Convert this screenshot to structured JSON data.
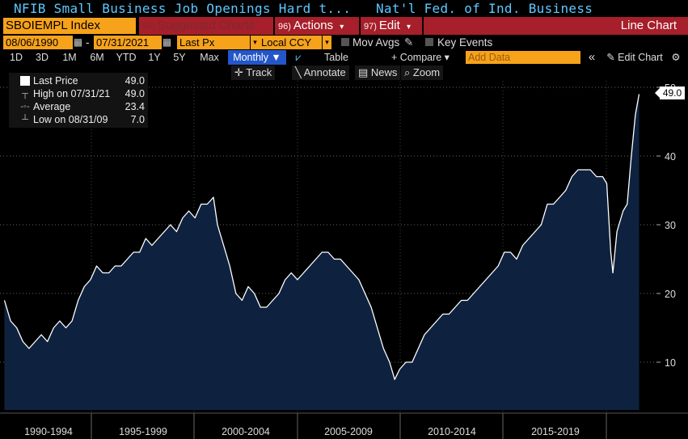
{
  "window": {
    "title_left": "NFIB Small Business Job Openings Hard t...",
    "title_right": "Nat'l Fed. of Ind. Business"
  },
  "toolbar": {
    "ticker": "SBOIEMPL Index",
    "suggested_num": "94)",
    "suggested_label": "Suggested Charts",
    "actions_num": "96)",
    "actions_label": "Actions",
    "edit_num": "97)",
    "edit_label": "Edit",
    "chart_type": "Line Chart",
    "dropdown_arrow": "▾"
  },
  "fields": {
    "start_date": "08/06/1990",
    "dash": "-",
    "end_date": "07/31/2021",
    "price_type": "Last Px",
    "currency": "Local CCY",
    "mov_avgs": "Mov Avgs",
    "key_events": "Key Events"
  },
  "periods": {
    "items": [
      "1D",
      "3D",
      "1M",
      "6M",
      "YTD",
      "1Y",
      "5Y",
      "Max"
    ],
    "frequency": "Monthly ▼",
    "table": "Table",
    "compare": "+ Compare ▾",
    "add_data_placeholder": "Add Data",
    "collapse": "«",
    "edit_chart": "✎ Edit Chart",
    "settings": "⚙"
  },
  "tools": {
    "track": "✛ Track",
    "annotate": "╲ Annotate",
    "news": "News",
    "zoom": "⌕ Zoom"
  },
  "legend": {
    "last_price_label": "Last Price",
    "last_price_value": "49.0",
    "high_label": "High on 07/31/21",
    "high_value": "49.0",
    "average_label": "Average",
    "average_value": "23.4",
    "low_label": "Low on 08/31/09",
    "low_value": "7.0"
  },
  "last_value_badge": "49.0",
  "colors": {
    "ticker_bg": "#f7a21b",
    "menu_red": "#a61f2a",
    "title_cyan": "#5ec8ff",
    "area_fill": "#0e2240",
    "line": "#ffffff",
    "selected_blue": "#2456c9"
  },
  "chart_data": {
    "type": "area",
    "title": "",
    "series_name": "Last Price",
    "x_tick_labels": [
      "1990-1994",
      "1995-1999",
      "2000-2004",
      "2005-2009",
      "2010-2014",
      "2015-2019"
    ],
    "y_ticks": [
      10,
      20,
      30,
      40,
      50
    ],
    "ylim": [
      3,
      52
    ],
    "xlim": [
      1990.58,
      2022.3
    ],
    "grid": true,
    "points": [
      [
        1990.6,
        19
      ],
      [
        1990.9,
        16
      ],
      [
        1991.2,
        15
      ],
      [
        1991.5,
        13
      ],
      [
        1991.8,
        12
      ],
      [
        1992.1,
        13
      ],
      [
        1992.4,
        14
      ],
      [
        1992.7,
        13
      ],
      [
        1993.0,
        15
      ],
      [
        1993.3,
        16
      ],
      [
        1993.6,
        15
      ],
      [
        1993.9,
        16
      ],
      [
        1994.2,
        19
      ],
      [
        1994.5,
        21
      ],
      [
        1994.8,
        22
      ],
      [
        1995.1,
        24
      ],
      [
        1995.4,
        23
      ],
      [
        1995.7,
        23
      ],
      [
        1996.0,
        24
      ],
      [
        1996.3,
        24
      ],
      [
        1996.6,
        25
      ],
      [
        1996.9,
        26
      ],
      [
        1997.2,
        26
      ],
      [
        1997.5,
        28
      ],
      [
        1997.8,
        27
      ],
      [
        1998.1,
        28
      ],
      [
        1998.4,
        29
      ],
      [
        1998.7,
        30
      ],
      [
        1999.0,
        29
      ],
      [
        1999.3,
        31
      ],
      [
        1999.6,
        32
      ],
      [
        1999.9,
        31
      ],
      [
        2000.2,
        33
      ],
      [
        2000.5,
        33
      ],
      [
        2000.8,
        34
      ],
      [
        2001.0,
        30
      ],
      [
        2001.3,
        27
      ],
      [
        2001.6,
        24
      ],
      [
        2001.9,
        20
      ],
      [
        2002.2,
        19
      ],
      [
        2002.5,
        21
      ],
      [
        2002.8,
        20
      ],
      [
        2003.1,
        18
      ],
      [
        2003.4,
        18
      ],
      [
        2003.7,
        19
      ],
      [
        2004.0,
        20
      ],
      [
        2004.3,
        22
      ],
      [
        2004.6,
        23
      ],
      [
        2004.9,
        22
      ],
      [
        2005.2,
        23
      ],
      [
        2005.5,
        24
      ],
      [
        2005.8,
        25
      ],
      [
        2006.1,
        26
      ],
      [
        2006.4,
        26
      ],
      [
        2006.7,
        25
      ],
      [
        2007.0,
        25
      ],
      [
        2007.3,
        24
      ],
      [
        2007.6,
        23
      ],
      [
        2007.9,
        22
      ],
      [
        2008.2,
        20
      ],
      [
        2008.5,
        18
      ],
      [
        2008.8,
        15
      ],
      [
        2009.1,
        12
      ],
      [
        2009.4,
        10
      ],
      [
        2009.65,
        7.5
      ],
      [
        2009.9,
        9
      ],
      [
        2010.2,
        10
      ],
      [
        2010.5,
        10
      ],
      [
        2010.8,
        12
      ],
      [
        2011.1,
        14
      ],
      [
        2011.4,
        15
      ],
      [
        2011.7,
        16
      ],
      [
        2012.0,
        17
      ],
      [
        2012.3,
        17
      ],
      [
        2012.6,
        18
      ],
      [
        2012.9,
        19
      ],
      [
        2013.2,
        19
      ],
      [
        2013.5,
        20
      ],
      [
        2013.8,
        21
      ],
      [
        2014.1,
        22
      ],
      [
        2014.4,
        23
      ],
      [
        2014.7,
        24
      ],
      [
        2015.0,
        26
      ],
      [
        2015.3,
        26
      ],
      [
        2015.6,
        25
      ],
      [
        2015.9,
        27
      ],
      [
        2016.2,
        28
      ],
      [
        2016.5,
        29
      ],
      [
        2016.8,
        30
      ],
      [
        2017.1,
        33
      ],
      [
        2017.4,
        33
      ],
      [
        2017.7,
        34
      ],
      [
        2018.0,
        35
      ],
      [
        2018.3,
        37
      ],
      [
        2018.6,
        38
      ],
      [
        2018.9,
        38
      ],
      [
        2019.2,
        38
      ],
      [
        2019.5,
        37
      ],
      [
        2019.8,
        37
      ],
      [
        2020.0,
        36
      ],
      [
        2020.2,
        26
      ],
      [
        2020.3,
        23
      ],
      [
        2020.5,
        29
      ],
      [
        2020.8,
        32
      ],
      [
        2021.0,
        33
      ],
      [
        2021.2,
        40
      ],
      [
        2021.4,
        46
      ],
      [
        2021.58,
        49
      ]
    ]
  }
}
